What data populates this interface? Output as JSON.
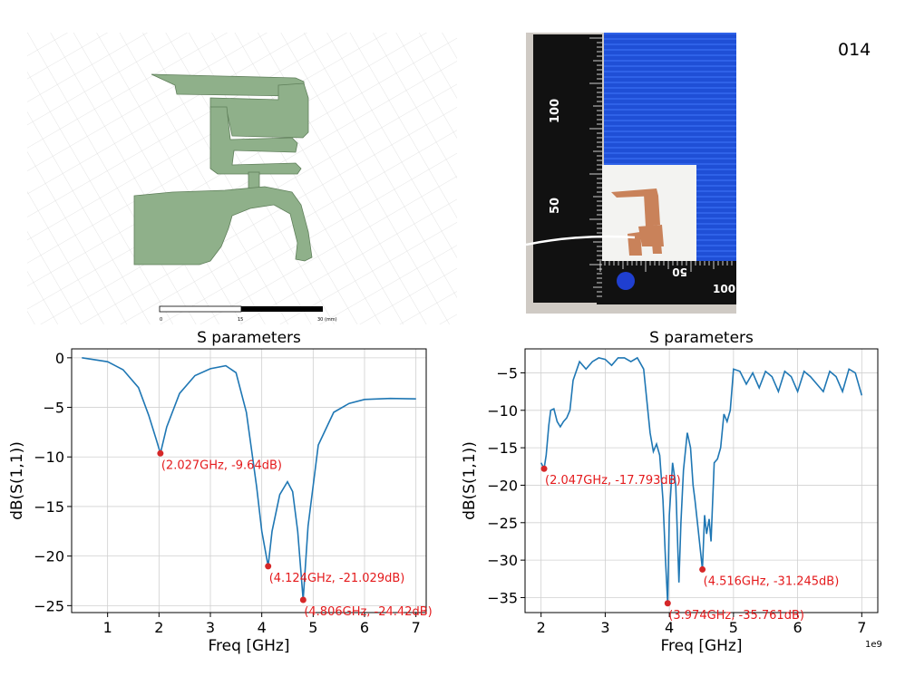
{
  "page_label": "014",
  "scale_bar": {
    "labels": [
      "0",
      "15",
      "30 (mm)"
    ]
  },
  "ruler": {
    "vertical_labels": [
      "100",
      "50"
    ],
    "horizontal_labels": [
      "50",
      "100"
    ]
  },
  "colors": {
    "line": "#1f77b4",
    "marker": "#d62728",
    "annotation": "#e41a1c",
    "antenna_green": "#8fb08a"
  },
  "chart_data": [
    {
      "type": "line",
      "title": "S parameters",
      "xlabel": "Freq [GHz]",
      "ylabel": "dB(S(1,1))",
      "xlim": [
        0.3,
        7.2
      ],
      "ylim": [
        -25.7,
        0.9
      ],
      "xticks": [
        1,
        2,
        3,
        4,
        5,
        6,
        7
      ],
      "xtick_labels": [
        "1",
        "2",
        "3",
        "4",
        "5",
        "6",
        "7"
      ],
      "yticks": [
        0,
        -5,
        -10,
        -15,
        -20,
        -25
      ],
      "ytick_labels": [
        "0",
        "−5",
        "−10",
        "−15",
        "−20",
        "−25"
      ],
      "grid": true,
      "x": [
        0.5,
        1.0,
        1.3,
        1.6,
        1.8,
        1.95,
        2.027,
        2.15,
        2.4,
        2.7,
        3.0,
        3.3,
        3.5,
        3.7,
        3.9,
        4.0,
        4.124,
        4.2,
        4.35,
        4.5,
        4.6,
        4.7,
        4.806,
        4.9,
        5.1,
        5.4,
        5.7,
        6.0,
        6.5,
        7.0
      ],
      "y": [
        0.0,
        -0.4,
        -1.2,
        -3.0,
        -5.8,
        -8.3,
        -9.64,
        -7.0,
        -3.6,
        -1.8,
        -1.1,
        -0.8,
        -1.5,
        -5.5,
        -13.0,
        -17.5,
        -21.029,
        -17.5,
        -13.8,
        -12.5,
        -13.5,
        -17.5,
        -24.42,
        -17.0,
        -8.8,
        -5.5,
        -4.6,
        -4.2,
        -4.1,
        -4.15
      ],
      "markers": [
        {
          "x": 2.027,
          "y": -9.64,
          "label": "(2.027GHz, -9.64dB)"
        },
        {
          "x": 4.124,
          "y": -21.029,
          "label": "(4.124GHz, -21.029dB)"
        },
        {
          "x": 4.806,
          "y": -24.42,
          "label": "(4.806GHz, -24.42dB)"
        }
      ]
    },
    {
      "type": "line",
      "title": "S parameters",
      "xlabel": "Freq [GHz]",
      "ylabel": "dB(S(1,1))",
      "axis_offset_text": "1e9",
      "xlim": [
        1.75,
        7.25
      ],
      "ylim": [
        -37.0,
        -1.8
      ],
      "xticks": [
        2,
        3,
        4,
        5,
        6,
        7
      ],
      "xtick_labels": [
        "2",
        "3",
        "4",
        "5",
        "6",
        "7"
      ],
      "yticks": [
        -5,
        -10,
        -15,
        -20,
        -25,
        -30,
        -35
      ],
      "ytick_labels": [
        "−5",
        "−10",
        "−15",
        "−20",
        "−25",
        "−30",
        "−35"
      ],
      "grid": true,
      "x": [
        2.0,
        2.047,
        2.08,
        2.12,
        2.15,
        2.2,
        2.25,
        2.3,
        2.35,
        2.4,
        2.45,
        2.5,
        2.6,
        2.7,
        2.8,
        2.9,
        3.0,
        3.1,
        3.2,
        3.3,
        3.4,
        3.5,
        3.6,
        3.7,
        3.75,
        3.8,
        3.85,
        3.9,
        3.94,
        3.974,
        4.0,
        4.05,
        4.1,
        4.15,
        4.18,
        4.22,
        4.28,
        4.33,
        4.37,
        4.4,
        4.45,
        4.5,
        4.516,
        4.55,
        4.58,
        4.62,
        4.65,
        4.7,
        4.75,
        4.8,
        4.85,
        4.9,
        4.95,
        5.0,
        5.1,
        5.2,
        5.3,
        5.4,
        5.5,
        5.6,
        5.7,
        5.8,
        5.9,
        6.0,
        6.1,
        6.2,
        6.3,
        6.4,
        6.5,
        6.6,
        6.7,
        6.8,
        6.9,
        7.0
      ],
      "y": [
        -17.0,
        -17.793,
        -16.0,
        -12.0,
        -10.0,
        -9.8,
        -11.5,
        -12.2,
        -11.5,
        -11.0,
        -10.0,
        -6.0,
        -3.5,
        -4.5,
        -3.5,
        -3.0,
        -3.2,
        -4.0,
        -3.0,
        -3.0,
        -3.5,
        -3.0,
        -4.5,
        -13.0,
        -15.5,
        -14.5,
        -16.0,
        -22.0,
        -30.0,
        -35.761,
        -24.0,
        -17.0,
        -20.0,
        -33.0,
        -25.0,
        -18.0,
        -13.0,
        -15.0,
        -20.0,
        -22.0,
        -26.0,
        -30.0,
        -31.245,
        -24.0,
        -26.5,
        -24.5,
        -27.5,
        -17.0,
        -16.5,
        -15.0,
        -10.5,
        -11.5,
        -10.0,
        -4.5,
        -4.8,
        -6.5,
        -5.0,
        -7.0,
        -4.8,
        -5.5,
        -7.5,
        -4.8,
        -5.5,
        -7.5,
        -4.8,
        -5.5,
        -6.5,
        -7.5,
        -4.8,
        -5.5,
        -7.5,
        -4.5,
        -5.0,
        -8.0
      ],
      "markers": [
        {
          "x": 2.047,
          "y": -17.793,
          "label": "(2.047GHz, -17.793dB)"
        },
        {
          "x": 3.974,
          "y": -35.761,
          "label": "(3.974GHz, -35.761dB)"
        },
        {
          "x": 4.516,
          "y": -31.245,
          "label": "(4.516GHz, -31.245dB)"
        }
      ]
    }
  ]
}
